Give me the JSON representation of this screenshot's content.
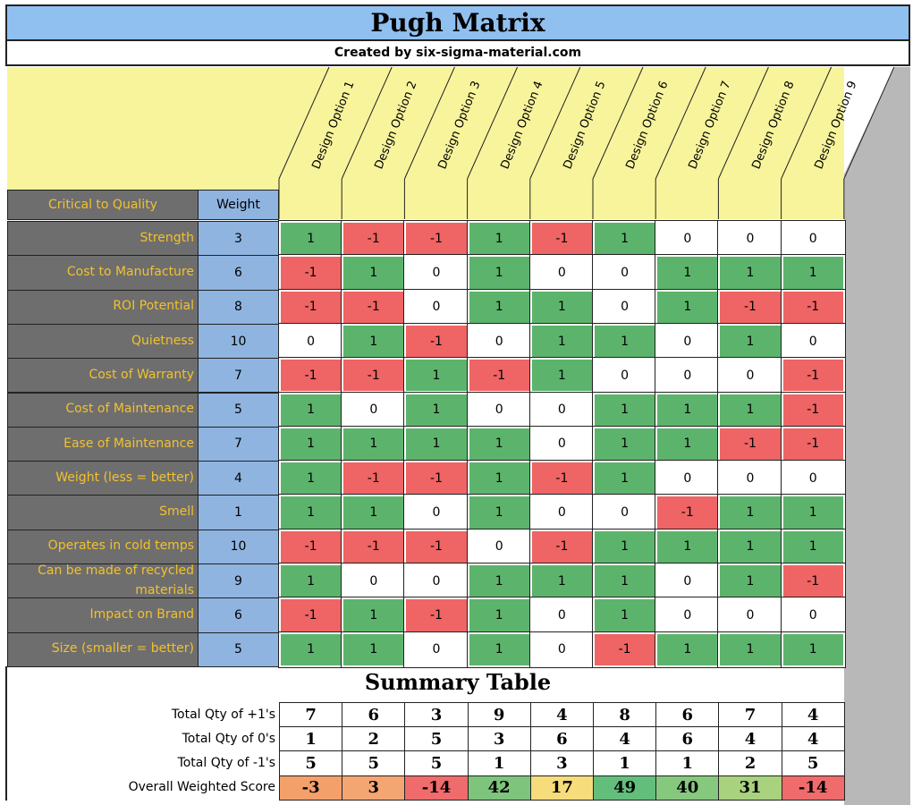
{
  "header": {
    "title": "Pugh Matrix",
    "subtitle": "Created by six-sigma-material.com"
  },
  "matrix": {
    "criteria_header": "Critical to Quality",
    "weight_header": "Weight",
    "options": [
      "Design Option 1",
      "Design Option 2",
      "Design Option 3",
      "Design Option 4",
      "Design Option 5",
      "Design Option 6",
      "Design Option 7",
      "Design Option 8",
      "Design Option 9"
    ],
    "rows": [
      {
        "criterion": "Strength",
        "weight": 3,
        "scores": [
          1,
          -1,
          -1,
          1,
          -1,
          1,
          0,
          0,
          0
        ]
      },
      {
        "criterion": "Cost to Manufacture",
        "weight": 6,
        "scores": [
          -1,
          1,
          0,
          1,
          0,
          0,
          1,
          1,
          1
        ]
      },
      {
        "criterion": "ROI Potential",
        "weight": 8,
        "scores": [
          -1,
          -1,
          0,
          1,
          1,
          0,
          1,
          -1,
          -1
        ]
      },
      {
        "criterion": "Quietness",
        "weight": 10,
        "scores": [
          0,
          1,
          -1,
          0,
          1,
          1,
          0,
          1,
          0
        ]
      },
      {
        "criterion": "Cost of Warranty",
        "weight": 7,
        "scores": [
          -1,
          -1,
          1,
          -1,
          1,
          0,
          0,
          0,
          -1
        ]
      },
      {
        "criterion": "Cost of Maintenance",
        "weight": 5,
        "scores": [
          1,
          0,
          1,
          0,
          0,
          1,
          1,
          1,
          -1
        ]
      },
      {
        "criterion": "Ease of Maintenance",
        "weight": 7,
        "scores": [
          1,
          1,
          1,
          1,
          0,
          1,
          1,
          -1,
          -1
        ]
      },
      {
        "criterion": "Weight (less = better)",
        "weight": 4,
        "scores": [
          1,
          -1,
          -1,
          1,
          -1,
          1,
          0,
          0,
          0
        ]
      },
      {
        "criterion": "Smell",
        "weight": 1,
        "scores": [
          1,
          1,
          0,
          1,
          0,
          0,
          -1,
          1,
          1
        ]
      },
      {
        "criterion": "Operates in cold temps",
        "weight": 10,
        "scores": [
          -1,
          -1,
          -1,
          0,
          -1,
          1,
          1,
          1,
          1
        ]
      },
      {
        "criterion": "Can be made of recycled materials",
        "weight": 9,
        "scores": [
          1,
          0,
          0,
          1,
          1,
          1,
          0,
          1,
          -1
        ]
      },
      {
        "criterion": "Impact on Brand",
        "weight": 6,
        "scores": [
          -1,
          1,
          -1,
          1,
          0,
          1,
          0,
          0,
          0
        ]
      },
      {
        "criterion": "Size (smaller = better)",
        "weight": 5,
        "scores": [
          1,
          1,
          0,
          1,
          0,
          -1,
          1,
          1,
          1
        ]
      }
    ]
  },
  "summary": {
    "title": "Summary Table",
    "rows": [
      {
        "label": "Total Qty of +1's",
        "values": [
          7,
          6,
          3,
          9,
          4,
          8,
          6,
          7,
          4
        ]
      },
      {
        "label": "Total Qty of 0's",
        "values": [
          1,
          2,
          5,
          3,
          6,
          4,
          6,
          4,
          4
        ]
      },
      {
        "label": "Total Qty of -1's",
        "values": [
          5,
          5,
          5,
          1,
          3,
          1,
          1,
          2,
          5
        ]
      },
      {
        "label": "Overall Weighted Score",
        "values": [
          -3,
          3,
          -14,
          42,
          17,
          49,
          40,
          31,
          -14
        ],
        "colors": [
          "#f3a06a",
          "#f4a672",
          "#f06b6b",
          "#7ec47c",
          "#f7dc7c",
          "#63be7b",
          "#86c87e",
          "#a9d27f",
          "#f06b6b"
        ]
      }
    ]
  }
}
